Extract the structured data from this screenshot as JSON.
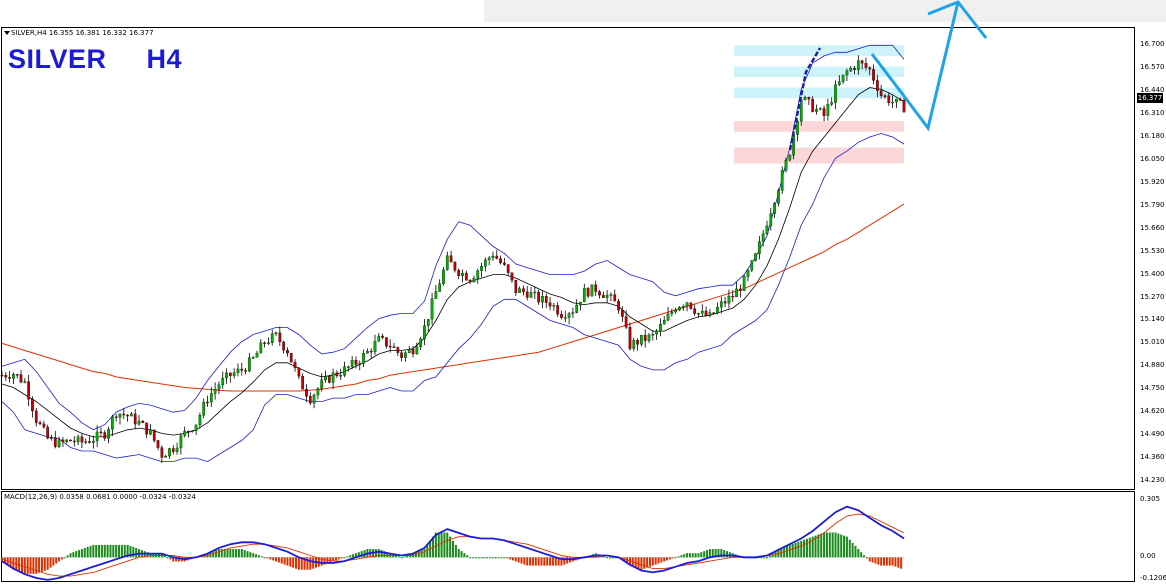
{
  "header": {
    "symbol_line": "SILVER,H4  16.355 16.381 16.332 16.377",
    "title": "SILVER     H4",
    "current_price": "16.377"
  },
  "indicator": {
    "macd_line": "MACD(12,26,9) 0.0358 0.0681 0.0000 -0.0324 -0.0324"
  },
  "colors": {
    "candles": "#000000",
    "bull_body": "#00b000",
    "bear_body": "#c00000",
    "bollinger": "#1c1cd6",
    "ma_long": "#e03000",
    "arrow": "#1ca3e8",
    "zone_blue": "#cdf3fb",
    "zone_red": "#fbd7d7",
    "macd_line": "#1c1cd6",
    "signal_line": "#e03000",
    "hist_pos": "#1a8a1a",
    "hist_neg": "#e03000"
  },
  "chart_data": [
    {
      "type": "line",
      "title": "SILVER     H4",
      "y_ticks": [
        "16.700",
        "16.570",
        "16.440",
        "16.310",
        "16.180",
        "16.050",
        "15.920",
        "15.790",
        "15.660",
        "15.530",
        "15.400",
        "15.270",
        "15.140",
        "15.010",
        "14.880",
        "14.750",
        "14.620",
        "14.490",
        "14.360",
        "14.230"
      ],
      "ylim": [
        14.23,
        16.73
      ],
      "series": [
        {
          "values": [
            14.83,
            14.84,
            14.79,
            14.58,
            14.47,
            14.44,
            14.46,
            14.45,
            14.47,
            14.5,
            14.62,
            14.6,
            14.56,
            14.5,
            14.38,
            14.42,
            14.5,
            14.56,
            14.7,
            14.78,
            14.83,
            14.86,
            14.92,
            15.02,
            15.05,
            14.97,
            14.8,
            14.7,
            14.78,
            14.83,
            14.86,
            14.9,
            14.96,
            15.03,
            15.0,
            14.94,
            14.98,
            15.1,
            15.3,
            15.48,
            15.42,
            15.38,
            15.45,
            15.52,
            15.44,
            15.31,
            15.3,
            15.26,
            15.24,
            15.18,
            15.2,
            15.3,
            15.32,
            15.28,
            15.22,
            15.0,
            15.03,
            15.05,
            15.13,
            15.22,
            15.25,
            15.18,
            15.16,
            15.23,
            15.28,
            15.36,
            15.5,
            15.7,
            15.9,
            16.1,
            16.4,
            16.35,
            16.3,
            16.45,
            16.55,
            16.6,
            16.56,
            16.42,
            16.38,
            16.35
          ]
        },
        {
          "values": [
            14.78,
            14.76,
            14.72,
            14.68,
            14.63,
            14.58,
            14.53,
            14.5,
            14.48,
            14.48,
            14.5,
            14.52,
            14.53,
            14.52,
            14.5,
            14.49,
            14.5,
            14.52,
            14.56,
            14.62,
            14.68,
            14.73,
            14.79,
            14.86,
            14.9,
            14.9,
            14.87,
            14.84,
            14.82,
            14.83,
            14.85,
            14.88,
            14.91,
            14.95,
            14.97,
            14.97,
            14.98,
            15.04,
            15.14,
            15.26,
            15.33,
            15.36,
            15.38,
            15.4,
            15.4,
            15.38,
            15.35,
            15.32,
            15.29,
            15.27,
            15.24,
            15.23,
            15.24,
            15.24,
            15.22,
            15.16,
            15.12,
            15.08,
            15.08,
            15.11,
            15.14,
            15.16,
            15.17,
            15.19,
            15.21,
            15.26,
            15.34,
            15.45,
            15.6,
            15.78,
            15.98,
            16.1,
            16.18,
            16.26,
            16.34,
            16.42,
            16.46,
            16.45,
            16.42,
            16.38
          ]
        },
        {
          "values": [
            14.88,
            14.9,
            14.92,
            14.85,
            14.76,
            14.67,
            14.62,
            14.56,
            14.52,
            14.55,
            14.62,
            14.65,
            14.67,
            14.66,
            14.64,
            14.62,
            14.63,
            14.7,
            14.8,
            14.88,
            14.96,
            15.02,
            15.06,
            15.08,
            15.1,
            15.1,
            15.06,
            15.0,
            14.95,
            14.96,
            14.98,
            15.04,
            15.1,
            15.15,
            15.17,
            15.18,
            15.18,
            15.25,
            15.45,
            15.6,
            15.7,
            15.68,
            15.62,
            15.56,
            15.52,
            15.46,
            15.44,
            15.42,
            15.4,
            15.4,
            15.4,
            15.42,
            15.46,
            15.48,
            15.44,
            15.4,
            15.38,
            15.36,
            15.3,
            15.28,
            15.3,
            15.32,
            15.33,
            15.34,
            15.34,
            15.4,
            15.5,
            15.62,
            15.86,
            16.12,
            16.45,
            16.6,
            16.64,
            16.66,
            16.66,
            16.68,
            16.7,
            16.7,
            16.7,
            16.62
          ]
        },
        {
          "values": [
            14.68,
            14.62,
            14.52,
            14.5,
            14.48,
            14.47,
            14.42,
            14.4,
            14.4,
            14.38,
            14.36,
            14.37,
            14.38,
            14.36,
            14.34,
            14.34,
            14.36,
            14.36,
            14.34,
            14.38,
            14.42,
            14.46,
            14.52,
            14.66,
            14.72,
            14.72,
            14.7,
            14.68,
            14.68,
            14.7,
            14.7,
            14.72,
            14.72,
            14.74,
            14.76,
            14.74,
            14.74,
            14.8,
            14.82,
            14.9,
            14.98,
            15.04,
            15.12,
            15.22,
            15.26,
            15.26,
            15.22,
            15.18,
            15.14,
            15.12,
            15.1,
            15.06,
            15.04,
            15.02,
            15.0,
            14.92,
            14.88,
            14.86,
            14.86,
            14.9,
            14.92,
            14.96,
            14.98,
            15.0,
            15.06,
            15.1,
            15.14,
            15.2,
            15.34,
            15.5,
            15.68,
            15.8,
            15.95,
            16.06,
            16.1,
            16.15,
            16.18,
            16.2,
            16.18,
            16.14
          ]
        },
        {
          "values": [
            15.01,
            14.99,
            14.97,
            14.95,
            14.93,
            14.91,
            14.89,
            14.87,
            14.85,
            14.84,
            14.82,
            14.81,
            14.8,
            14.79,
            14.78,
            14.77,
            14.76,
            14.755,
            14.75,
            14.745,
            14.74,
            14.74,
            14.74,
            14.74,
            14.74,
            14.74,
            14.74,
            14.745,
            14.75,
            14.76,
            14.77,
            14.78,
            14.8,
            14.81,
            14.83,
            14.84,
            14.85,
            14.86,
            14.87,
            14.88,
            14.89,
            14.9,
            14.91,
            14.92,
            14.93,
            14.94,
            14.95,
            14.96,
            14.98,
            15.0,
            15.02,
            15.04,
            15.06,
            15.08,
            15.1,
            15.12,
            15.14,
            15.16,
            15.18,
            15.2,
            15.22,
            15.24,
            15.26,
            15.28,
            15.3,
            15.32,
            15.35,
            15.38,
            15.41,
            15.44,
            15.47,
            15.5,
            15.53,
            15.57,
            15.6,
            15.64,
            15.68,
            15.72,
            15.76,
            15.8
          ]
        }
      ],
      "zones_blue": [
        [
          16.64,
          16.7
        ],
        [
          16.52,
          16.58
        ],
        [
          16.4,
          16.46
        ]
      ],
      "zones_red": [
        [
          16.21,
          16.27
        ],
        [
          16.03,
          16.12
        ]
      ]
    },
    {
      "type": "line",
      "title": "MACD(12,26,9) 0.0358 0.0681 0.0000 -0.0324 -0.0324",
      "y_ticks": [
        "0.305",
        "0.00",
        "-0.1206"
      ],
      "ylim": [
        -0.1206,
        0.305
      ],
      "series": [
        {
          "values": [
            -0.02,
            -0.06,
            -0.09,
            -0.11,
            -0.12,
            -0.11,
            -0.09,
            -0.07,
            -0.05,
            -0.03,
            -0.01,
            0.01,
            0.02,
            0.02,
            0.02,
            0.0,
            -0.01,
            0.0,
            0.02,
            0.05,
            0.07,
            0.08,
            0.08,
            0.07,
            0.05,
            0.03,
            0.0,
            -0.02,
            -0.03,
            -0.03,
            -0.02,
            0.0,
            0.02,
            0.03,
            0.02,
            0.01,
            0.02,
            0.05,
            0.12,
            0.15,
            0.13,
            0.11,
            0.1,
            0.1,
            0.09,
            0.07,
            0.05,
            0.03,
            0.01,
            -0.01,
            -0.01,
            0.0,
            0.01,
            0.01,
            0.0,
            -0.04,
            -0.07,
            -0.08,
            -0.07,
            -0.05,
            -0.03,
            -0.02,
            0.0,
            0.01,
            0.01,
            0.0,
            0.0,
            0.01,
            0.04,
            0.07,
            0.1,
            0.14,
            0.19,
            0.24,
            0.27,
            0.25,
            0.21,
            0.17,
            0.14,
            0.1
          ]
        },
        {
          "values": [
            -0.01,
            -0.03,
            -0.05,
            -0.07,
            -0.09,
            -0.1,
            -0.1,
            -0.09,
            -0.08,
            -0.06,
            -0.04,
            -0.02,
            0.0,
            0.01,
            0.01,
            0.01,
            0.0,
            0.0,
            0.01,
            0.03,
            0.05,
            0.06,
            0.07,
            0.07,
            0.06,
            0.05,
            0.03,
            0.01,
            -0.01,
            -0.02,
            -0.02,
            -0.01,
            0.0,
            0.01,
            0.01,
            0.01,
            0.01,
            0.03,
            0.06,
            0.09,
            0.11,
            0.11,
            0.1,
            0.1,
            0.09,
            0.08,
            0.07,
            0.05,
            0.03,
            0.01,
            0.0,
            0.0,
            0.0,
            0.01,
            0.0,
            -0.02,
            -0.04,
            -0.06,
            -0.06,
            -0.05,
            -0.04,
            -0.03,
            -0.02,
            -0.01,
            0.0,
            0.0,
            0.0,
            0.01,
            0.02,
            0.04,
            0.06,
            0.09,
            0.13,
            0.18,
            0.22,
            0.23,
            0.22,
            0.19,
            0.16,
            0.13
          ]
        }
      ]
    }
  ]
}
